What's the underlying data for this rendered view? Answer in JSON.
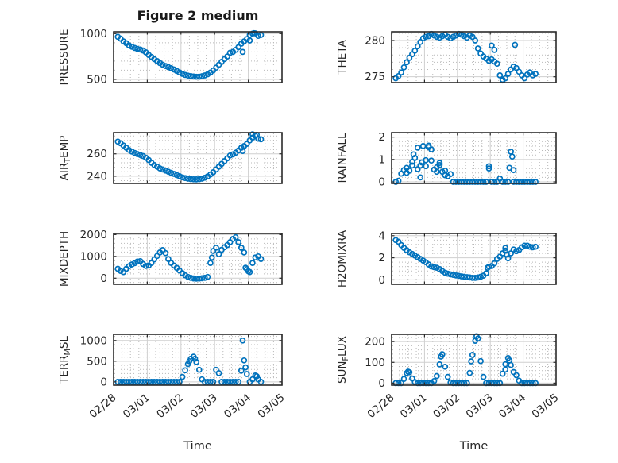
{
  "chart_data": {
    "type": "scatter",
    "title": "Figure 2 medium",
    "marker_color": "#0072BD",
    "grid": {
      "major": true,
      "minor": true
    },
    "x_axis": {
      "label": "Time",
      "tick_labels": [
        "02/28",
        "03/01",
        "03/02",
        "03/03",
        "03/04",
        "03/05"
      ],
      "tick_days": [
        0,
        1,
        2,
        3,
        4,
        5
      ],
      "range_days": [
        0,
        5
      ]
    },
    "x_days": [
      0.125,
      0.208,
      0.292,
      0.375,
      0.458,
      0.542,
      0.625,
      0.708,
      0.792,
      0.875,
      0.958,
      1.042,
      1.125,
      1.208,
      1.292,
      1.375,
      1.458,
      1.542,
      1.625,
      1.708,
      1.792,
      1.875,
      1.958,
      2.042,
      2.125,
      2.208,
      2.292,
      2.375,
      2.458,
      2.542,
      2.625,
      2.708,
      2.792,
      2.875,
      2.958,
      3.042,
      3.125,
      3.208,
      3.292,
      3.375,
      3.458,
      3.542,
      3.625,
      3.708,
      3.792,
      3.875,
      3.958,
      4.042,
      4.125,
      4.208,
      4.292,
      4.375
    ],
    "subplots": [
      {
        "id": "pressure",
        "label": "PRESSURE",
        "ylabel_parts": [
          {
            "text": "PRESSURE",
            "sub": false
          }
        ],
        "yticks": [
          500,
          1000
        ],
        "ylim": [
          465,
          1020
        ],
        "values": [
          965,
          945,
          915,
          895,
          872,
          856,
          843,
          833,
          826,
          815,
          795,
          768,
          745,
          722,
          700,
          678,
          660,
          646,
          634,
          622,
          608,
          592,
          576,
          560,
          548,
          541,
          535,
          531,
          528,
          529,
          534,
          543,
          556,
          574,
          598,
          628,
          660,
          692,
          722,
          750,
          790,
          800,
          822,
          852,
          890,
          915,
          940,
          985,
          1000,
          1003,
          975,
          985
        ],
        "extra_points": [
          [
            3.833,
            800
          ],
          [
            4.042,
            925
          ],
          [
            4.167,
            1005
          ]
        ]
      },
      {
        "id": "theta",
        "label": "THETA",
        "ylabel_parts": [
          {
            "text": "THETA",
            "sub": false
          }
        ],
        "yticks": [
          275,
          280
        ],
        "ylim": [
          274.2,
          281.2
        ],
        "values": [
          274.8,
          275.1,
          275.6,
          276.3,
          277,
          277.6,
          278.1,
          278.6,
          279.2,
          279.8,
          280.3,
          280.5,
          280.6,
          280.9,
          280.7,
          280.5,
          280.4,
          280.6,
          280.8,
          280.5,
          280.3,
          280.5,
          280.7,
          280.9,
          280.8,
          280.6,
          280.4,
          280.7,
          280.5,
          280,
          278.9,
          278.2,
          277.8,
          277.5,
          277.2,
          277.4,
          277.1,
          276.8,
          275.2,
          274.6,
          274.8,
          275.4,
          276,
          276.4,
          276.2,
          275.7,
          275.2,
          274.8,
          275.3,
          275.6,
          275.2,
          275.4
        ],
        "extra_points": [
          [
            3.042,
            279.3
          ],
          [
            3.125,
            278.7
          ],
          [
            3.375,
            274.5
          ],
          [
            3.75,
            279.4
          ]
        ]
      },
      {
        "id": "air-temp",
        "label": "AIR_TEMP",
        "ylabel_parts": [
          {
            "text": "AIR",
            "sub": false
          },
          {
            "text": "T",
            "sub": true
          },
          {
            "text": "EMP",
            "sub": false
          }
        ],
        "yticks": [
          240,
          260
        ],
        "ylim": [
          233.5,
          279
        ],
        "values": [
          271,
          269.5,
          267.5,
          265.5,
          263.5,
          262,
          260.8,
          259.8,
          259,
          258,
          256.5,
          254.5,
          252,
          250,
          248.5,
          247,
          246,
          245,
          244,
          243,
          242,
          241,
          240,
          239,
          238.3,
          237.8,
          237.4,
          237.2,
          237.1,
          237.3,
          237.8,
          238.6,
          239.8,
          241.5,
          243.5,
          246,
          248.5,
          251,
          253.5,
          256,
          258.5,
          259.5,
          261,
          263,
          265.5,
          267,
          269,
          272,
          274.5,
          276,
          273.5,
          273
        ],
        "extra_points": [
          [
            3.833,
            262.5
          ],
          [
            4.125,
            277.5
          ],
          [
            4.25,
            277
          ]
        ]
      },
      {
        "id": "rainfall",
        "label": "RAINFALL",
        "ylabel_parts": [
          {
            "text": "RAINFALL",
            "sub": false
          }
        ],
        "yticks": [
          0,
          1,
          2
        ],
        "ylim": [
          -0.07,
          2.2
        ],
        "values": [
          0,
          0.05,
          0.37,
          0.53,
          0.63,
          0.5,
          0.73,
          1.07,
          1.53,
          0.73,
          1.6,
          0.7,
          1.55,
          1.45,
          0.55,
          0.65,
          0.75,
          0.45,
          0.5,
          0.25,
          0.35,
          0,
          0,
          0,
          0,
          0,
          0,
          0,
          0,
          0,
          0,
          0,
          0,
          0,
          0.7,
          0,
          0,
          0,
          0.15,
          0,
          0,
          0,
          1.35,
          0,
          0,
          0,
          0,
          0,
          0,
          0,
          0,
          0
        ],
        "extra_points": [
          [
            0.458,
            0.4
          ],
          [
            0.625,
            0.9
          ],
          [
            0.667,
            1.23
          ],
          [
            0.792,
            0.57
          ],
          [
            0.875,
            0.2
          ],
          [
            0.917,
            0.87
          ],
          [
            1.042,
            0.97
          ],
          [
            1.125,
            1.62
          ],
          [
            1.208,
            0.95
          ],
          [
            1.375,
            0.45
          ],
          [
            1.458,
            0.85
          ],
          [
            1.625,
            0.3
          ],
          [
            2.958,
            0.6
          ],
          [
            3.583,
            0.63
          ],
          [
            3.667,
            1.13
          ],
          [
            3.708,
            0.53
          ]
        ]
      },
      {
        "id": "mixdepth",
        "label": "MIXDEPTH",
        "ylabel_parts": [
          {
            "text": "MIXDEPTH",
            "sub": false
          }
        ],
        "yticks": [
          0,
          1000,
          2000
        ],
        "ylim": [
          -280,
          2050
        ],
        "values": [
          430,
          330,
          280,
          430,
          550,
          630,
          690,
          760,
          780,
          650,
          560,
          580,
          700,
          860,
          1020,
          1180,
          1290,
          1150,
          880,
          700,
          580,
          470,
          350,
          230,
          130,
          60,
          15,
          -10,
          -20,
          -18,
          -5,
          15,
          60,
          700,
          1250,
          1400,
          1100,
          1300,
          1420,
          1520,
          1650,
          1800,
          1880,
          1650,
          1400,
          1180,
          420,
          280,
          700,
          950,
          1000,
          880
        ],
        "extra_points": [
          [
            2.917,
            950
          ],
          [
            3.917,
            480
          ],
          [
            4.0,
            320
          ]
        ]
      },
      {
        "id": "h2omixra",
        "label": "H2OMIXRA",
        "ylabel_parts": [
          {
            "text": "H2OMIXRA",
            "sub": false
          }
        ],
        "yticks": [
          0,
          2,
          4
        ],
        "ylim": [
          -0.4,
          4.2
        ],
        "values": [
          3.6,
          3.45,
          3.15,
          2.9,
          2.68,
          2.5,
          2.35,
          2.2,
          2.05,
          1.9,
          1.75,
          1.6,
          1.4,
          1.22,
          1.15,
          1.1,
          0.98,
          0.8,
          0.65,
          0.56,
          0.5,
          0.45,
          0.4,
          0.36,
          0.32,
          0.28,
          0.25,
          0.22,
          0.18,
          0.18,
          0.22,
          0.28,
          0.38,
          0.6,
          1.2,
          1.25,
          1.5,
          1.9,
          2.1,
          2.4,
          2.65,
          1.95,
          2.4,
          2.75,
          2.6,
          2.7,
          2.95,
          3.1,
          3.1,
          3,
          2.95,
          3
        ],
        "extra_points": [
          [
            2.917,
            1.1
          ],
          [
            3.458,
            2.9
          ],
          [
            3.5,
            2.3
          ]
        ]
      },
      {
        "id": "terr-msl",
        "label": "TERR_MSL",
        "ylabel_parts": [
          {
            "text": "TERR",
            "sub": false
          },
          {
            "text": "M",
            "sub": true
          },
          {
            "text": "SL",
            "sub": false
          }
        ],
        "yticks": [
          0,
          500,
          1000
        ],
        "ylim": [
          -80,
          1150
        ],
        "values": [
          0,
          0,
          0,
          0,
          0,
          0,
          0,
          0,
          0,
          0,
          0,
          0,
          0,
          0,
          0,
          0,
          0,
          0,
          0,
          0,
          0,
          0,
          0,
          120,
          280,
          430,
          560,
          610,
          480,
          290,
          60,
          0,
          0,
          0,
          0,
          290,
          210,
          0,
          0,
          0,
          0,
          0,
          0,
          0,
          270,
          520,
          190,
          0,
          60,
          155,
          60,
          0
        ],
        "extra_points": [
          [
            2.25,
            500
          ],
          [
            2.417,
            560
          ],
          [
            3.833,
            1000
          ],
          [
            3.917,
            350
          ],
          [
            4.25,
            135
          ]
        ]
      },
      {
        "id": "sun-flux",
        "label": "SUN_FLUX",
        "ylabel_parts": [
          {
            "text": "SUN",
            "sub": false
          },
          {
            "text": "F",
            "sub": true
          },
          {
            "text": "LUX",
            "sub": false
          }
        ],
        "yticks": [
          0,
          100,
          200
        ],
        "ylim": [
          -10,
          235
        ],
        "values": [
          0,
          0,
          0,
          20,
          48,
          52,
          22,
          5,
          0,
          0,
          0,
          0,
          0,
          0,
          10,
          34,
          90,
          139,
          79,
          30,
          3,
          0,
          0,
          0,
          0,
          0,
          0,
          49,
          136,
          204,
          215,
          106,
          30,
          0,
          0,
          0,
          0,
          0,
          0,
          45,
          91,
          121,
          87,
          53,
          38,
          12,
          0,
          0,
          0,
          0,
          0,
          0
        ],
        "extra_points": [
          [
            0.5,
            55
          ],
          [
            1.5,
            128
          ],
          [
            2.417,
            105
          ],
          [
            2.583,
            226
          ],
          [
            3.458,
            65
          ],
          [
            3.583,
            109
          ]
        ]
      }
    ]
  }
}
